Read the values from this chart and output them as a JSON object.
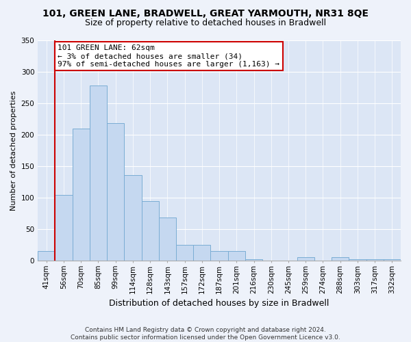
{
  "title": "101, GREEN LANE, BRADWELL, GREAT YARMOUTH, NR31 8QE",
  "subtitle": "Size of property relative to detached houses in Bradwell",
  "xlabel": "Distribution of detached houses by size in Bradwell",
  "ylabel": "Number of detached properties",
  "bin_labels": [
    "41sqm",
    "56sqm",
    "70sqm",
    "85sqm",
    "99sqm",
    "114sqm",
    "128sqm",
    "143sqm",
    "157sqm",
    "172sqm",
    "187sqm",
    "201sqm",
    "216sqm",
    "230sqm",
    "245sqm",
    "259sqm",
    "274sqm",
    "288sqm",
    "303sqm",
    "317sqm",
    "332sqm"
  ],
  "bar_heights": [
    15,
    104,
    210,
    278,
    218,
    136,
    95,
    68,
    25,
    25,
    15,
    15,
    2,
    0,
    0,
    5,
    0,
    5,
    2,
    2,
    2
  ],
  "bar_color": "#c5d8f0",
  "bar_edge_color": "#7aadd4",
  "marker_color": "#cc0000",
  "annotation_box_color": "#ffffff",
  "annotation_box_edge": "#cc0000",
  "marker_label": "101 GREEN LANE: 62sqm",
  "annotation_line1": "← 3% of detached houses are smaller (34)",
  "annotation_line2": "97% of semi-detached houses are larger (1,163) →",
  "ylim": [
    0,
    350
  ],
  "yticks": [
    0,
    50,
    100,
    150,
    200,
    250,
    300,
    350
  ],
  "footer_line1": "Contains HM Land Registry data © Crown copyright and database right 2024.",
  "footer_line2": "Contains public sector information licensed under the Open Government Licence v3.0.",
  "bg_color": "#eef2fa",
  "plot_bg_color": "#dce6f5",
  "title_fontsize": 10,
  "subtitle_fontsize": 9,
  "ylabel_fontsize": 8,
  "xlabel_fontsize": 9,
  "tick_fontsize": 7.5,
  "footer_fontsize": 6.5,
  "annot_fontsize": 8
}
